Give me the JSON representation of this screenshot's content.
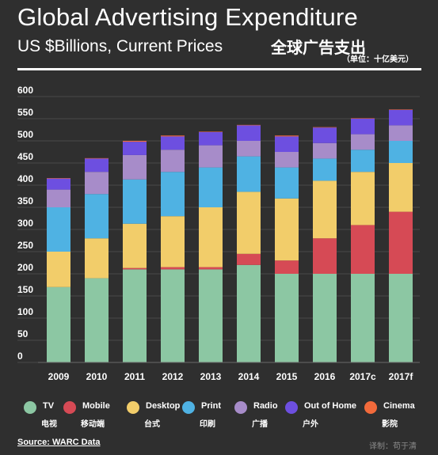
{
  "header": {
    "title": "Global Advertising Expenditure",
    "subtitle": "US $Billions, Current Prices",
    "title_cn": "全球广告支出",
    "unit_cn": "（单位：十亿美元）"
  },
  "legend": [
    {
      "en": "TV",
      "cn": "电视",
      "color": "#8cc7a3",
      "icon": "tv-dot-icon"
    },
    {
      "en": "Mobile",
      "cn": "移动端",
      "color": "#d64a55",
      "icon": "mobile-dot-icon"
    },
    {
      "en": "Desktop",
      "cn": "台式",
      "color": "#f2cd6a",
      "icon": "desktop-dot-icon"
    },
    {
      "en": "Print",
      "cn": "印刷",
      "color": "#4fb2e3",
      "icon": "print-dot-icon"
    },
    {
      "en": "Radio",
      "cn": "广播",
      "color": "#a78cc9",
      "icon": "radio-dot-icon"
    },
    {
      "en": "Out of Home",
      "cn": "户外",
      "color": "#6d4fe0",
      "icon": "out-of-home-dot-icon"
    },
    {
      "en": "Cinema",
      "cn": "影院",
      "color": "#f26a3b",
      "icon": "cinema-dot-icon"
    }
  ],
  "footer": {
    "source": "Source: WARC Data",
    "credit": "译制：苟于清"
  },
  "chart_data": {
    "type": "bar",
    "stacked": true,
    "title": "Global Advertising Expenditure",
    "subtitle": "US $Billions, Current Prices",
    "xlabel": "",
    "ylabel": "",
    "ylim": [
      0,
      600
    ],
    "yticks": [
      0,
      50,
      100,
      150,
      200,
      250,
      300,
      350,
      400,
      450,
      500,
      550,
      600
    ],
    "grid": true,
    "legend_position": "bottom",
    "categories": [
      "2009",
      "2010",
      "2011",
      "2012",
      "2013",
      "2014",
      "2015",
      "2016",
      "2017c",
      "2017f"
    ],
    "series": [
      {
        "name": "TV",
        "color": "#8cc7a3",
        "values": [
          170,
          190,
          210,
          210,
          210,
          220,
          200,
          200,
          200,
          200
        ]
      },
      {
        "name": "Mobile",
        "color": "#d64a55",
        "values": [
          0,
          0,
          3,
          5,
          5,
          25,
          30,
          80,
          110,
          140
        ]
      },
      {
        "name": "Desktop",
        "color": "#f2cd6a",
        "values": [
          80,
          90,
          100,
          115,
          135,
          140,
          140,
          130,
          120,
          110
        ]
      },
      {
        "name": "Print",
        "color": "#4fb2e3",
        "values": [
          100,
          100,
          100,
          100,
          90,
          80,
          70,
          50,
          50,
          50
        ]
      },
      {
        "name": "Radio",
        "color": "#a78cc9",
        "values": [
          40,
          50,
          55,
          50,
          50,
          35,
          35,
          35,
          35,
          35
        ]
      },
      {
        "name": "Out of Home",
        "color": "#6d4fe0",
        "values": [
          25,
          30,
          30,
          30,
          30,
          35,
          35,
          35,
          35,
          35
        ]
      },
      {
        "name": "Cinema",
        "color": "#f26a3b",
        "values": [
          1,
          1,
          2,
          2,
          1,
          1,
          2,
          1,
          1,
          1
        ]
      }
    ]
  }
}
